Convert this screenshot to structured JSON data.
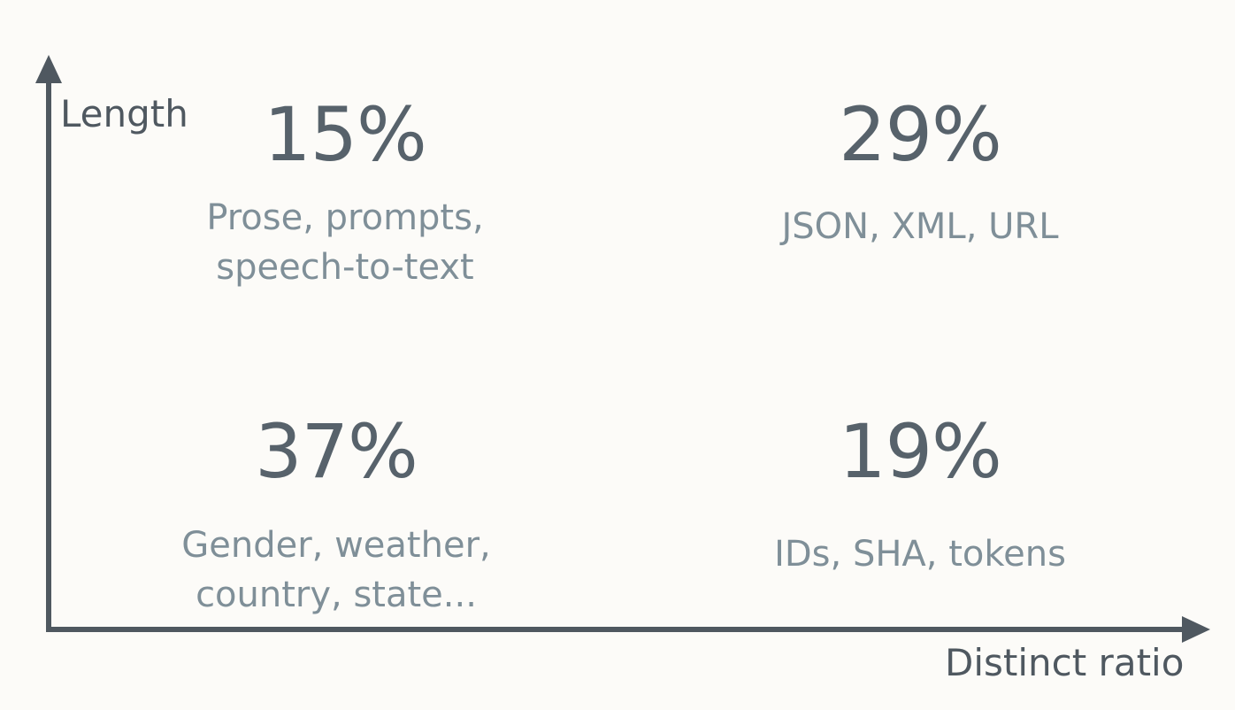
{
  "axes": {
    "y_label": "Length",
    "x_label": "Distinct ratio"
  },
  "quadrants": {
    "top_left": {
      "percent": "15%",
      "description": "Prose, prompts,\nspeech-to-text"
    },
    "top_right": {
      "percent": "29%",
      "description": "JSON, XML, URL"
    },
    "bottom_left": {
      "percent": "37%",
      "description": "Gender, weather,\ncountry, state..."
    },
    "bottom_right": {
      "percent": "19%",
      "description": "IDs, SHA, tokens"
    }
  },
  "colors": {
    "background": "#fcfbf8",
    "axis": "#4f5860",
    "divider": "#aab3c4",
    "percent_text": "#57626b",
    "description_text": "#7f8f98"
  }
}
